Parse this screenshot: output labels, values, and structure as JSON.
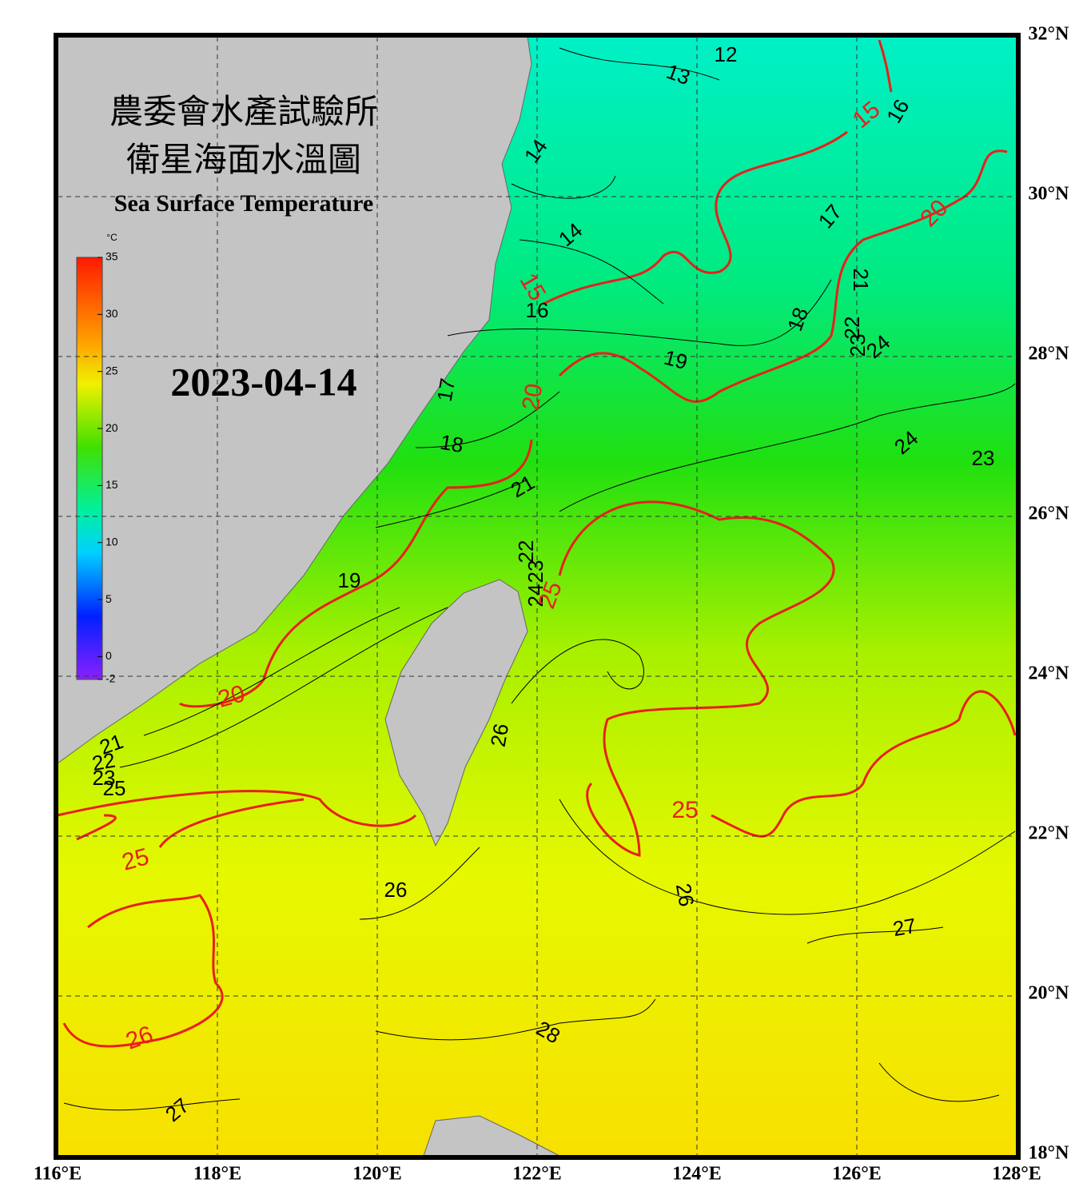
{
  "header": {
    "title_zh_1": "農委會水產試驗所",
    "title_zh_2": "衛星海面水溫圖",
    "title_en": "Sea Surface Temperature",
    "date": "2023-04-14"
  },
  "colorbar": {
    "unit": "°C",
    "ticks": [
      35,
      30,
      25,
      20,
      15,
      10,
      5,
      0,
      -2
    ]
  },
  "lon_labels": [
    "116°E",
    "118°E",
    "120°E",
    "122°E",
    "124°E",
    "126°E",
    "128°E"
  ],
  "lat_labels": [
    "32°N",
    "30°N",
    "28°N",
    "26°N",
    "24°N",
    "22°N",
    "20°N",
    "18°N"
  ],
  "contour_labels": [
    "12",
    "13",
    "14",
    "14",
    "15",
    "15",
    "16",
    "16",
    "17",
    "17",
    "18",
    "18",
    "19",
    "19",
    "20",
    "20",
    "20",
    "21",
    "21",
    "21",
    "22",
    "22",
    "22",
    "23",
    "23",
    "23",
    "23",
    "24",
    "24",
    "24",
    "25",
    "25",
    "25",
    "25",
    "26",
    "26",
    "26",
    "26",
    "27",
    "27",
    "28"
  ]
}
